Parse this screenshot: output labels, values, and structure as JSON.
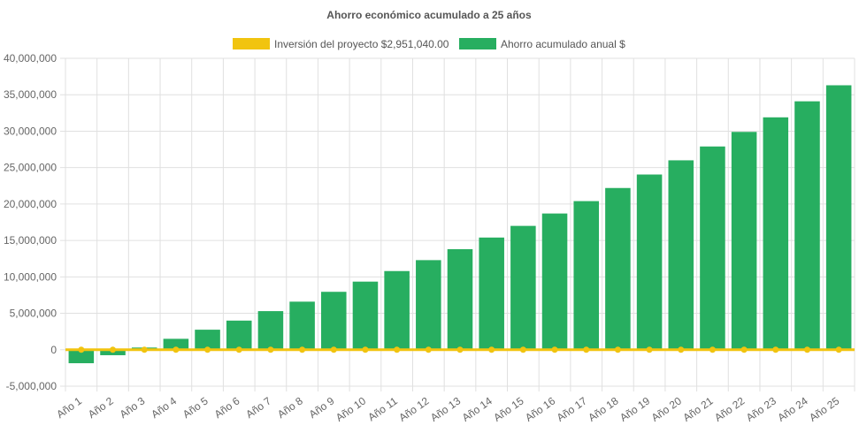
{
  "chart_data": {
    "type": "bar",
    "title": "Ahorro económico acumulado a 25 años",
    "categories": [
      "Año 1",
      "Año 2",
      "Año 3",
      "Año 4",
      "Año 5",
      "Año 6",
      "Año 7",
      "Año 8",
      "Año 9",
      "Año 10",
      "Año 11",
      "Año 12",
      "Año 13",
      "Año 14",
      "Año 15",
      "Año 16",
      "Año 17",
      "Año 18",
      "Año 19",
      "Año 20",
      "Año 21",
      "Año 22",
      "Año 23",
      "Año 24",
      "Año 25"
    ],
    "series": [
      {
        "name": "Inversión del proyecto $2,951,040.00",
        "type": "line",
        "color": "#f1c40f",
        "values": [
          0,
          0,
          0,
          0,
          0,
          0,
          0,
          0,
          0,
          0,
          0,
          0,
          0,
          0,
          0,
          0,
          0,
          0,
          0,
          0,
          0,
          0,
          0,
          0,
          0
        ]
      },
      {
        "name": "Ahorro acumulado anual $",
        "type": "bar",
        "color": "#27ae60",
        "values": [
          -1850000,
          -750000,
          300000,
          1500000,
          2750000,
          4000000,
          5300000,
          6600000,
          7950000,
          9350000,
          10800000,
          12300000,
          13800000,
          15400000,
          17000000,
          18700000,
          20400000,
          22200000,
          24050000,
          26000000,
          27900000,
          29900000,
          31900000,
          34100000,
          36300000
        ]
      }
    ],
    "ylim": [
      -5000000,
      40000000
    ],
    "yticks": [
      "40,000,000",
      "35,000,000",
      "30,000,000",
      "25,000,000",
      "20,000,000",
      "15,000,000",
      "10,000,000",
      "5,000,000",
      "0",
      "-5,000,000"
    ],
    "ytick_values": [
      40000000,
      35000000,
      30000000,
      25000000,
      20000000,
      15000000,
      10000000,
      5000000,
      0,
      -5000000
    ],
    "grid": true,
    "legend": "top"
  }
}
